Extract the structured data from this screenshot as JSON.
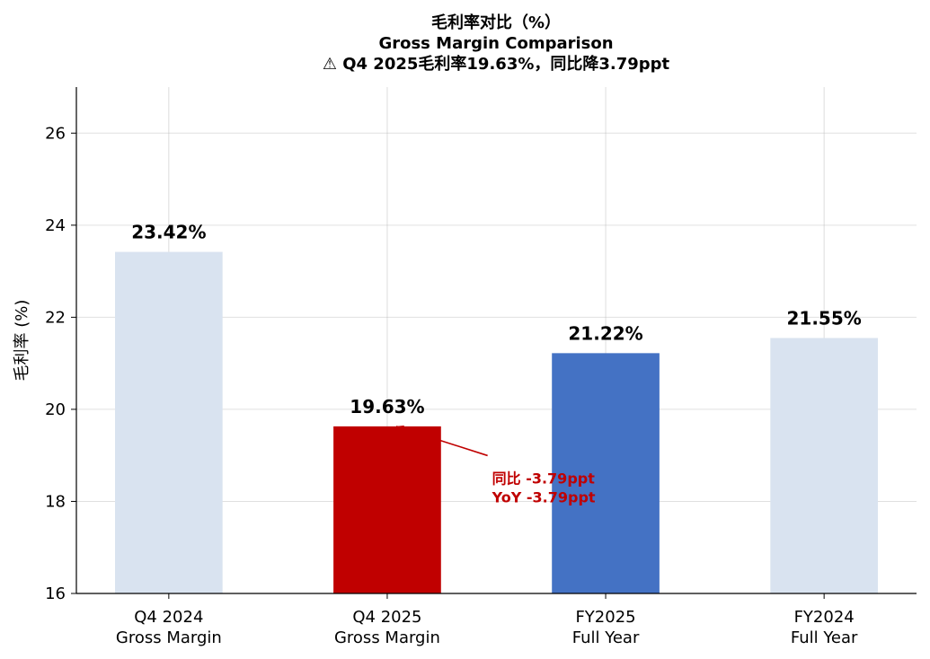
{
  "chart_data": {
    "type": "bar",
    "title_lines": [
      "毛利率对比（%）",
      "Gross Margin Comparison",
      "⚠ Q4 2025毛利率19.63%，同比降3.79ppt"
    ],
    "categories": [
      [
        "Q4 2024",
        "Gross Margin"
      ],
      [
        "Q4 2025",
        "Gross Margin"
      ],
      [
        "FY2025",
        "Full Year"
      ],
      [
        "FY2024",
        "Full Year"
      ]
    ],
    "values": [
      23.42,
      19.63,
      21.22,
      21.55
    ],
    "value_labels": [
      "23.42%",
      "19.63%",
      "21.22%",
      "21.55%"
    ],
    "bar_colors": [
      "#d9e3f0",
      "#c00000",
      "#4472c4",
      "#d9e3f0"
    ],
    "ylabel": "毛利率 (%)",
    "ylim": [
      16,
      27
    ],
    "yticks": [
      16,
      18,
      20,
      22,
      24,
      26
    ],
    "grid": true,
    "annotation": {
      "lines": [
        "同比 -3.79ppt",
        "YoY -3.79ppt"
      ],
      "color": "#c00000",
      "target_category_index": 1,
      "target_value": 19.63,
      "text_x_category": 1.48,
      "text_y_value": 18.8
    }
  }
}
